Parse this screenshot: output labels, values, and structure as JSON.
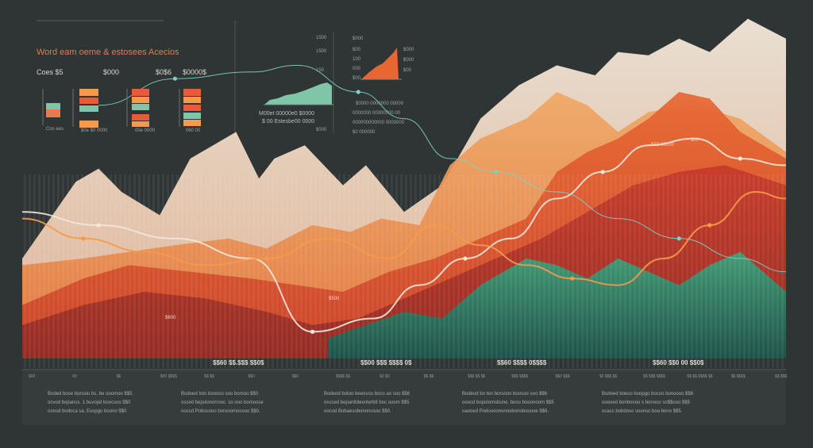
{
  "header": {
    "title": "Word eam oeme & estosees Acecios",
    "stats": [
      "Coes $5",
      "$000",
      "$0$6",
      "$0000$"
    ],
    "bar_caption": "Cos ees",
    "bar_captions_small": [
      "$0e $0 0000",
      "00e 0000",
      "060 00"
    ]
  },
  "mini_charts": {
    "left_axis": [
      "1500",
      "1500",
      "150"
    ],
    "left_caption": "M00et 00000e0 $0000",
    "left_caption2": "$ 00 Estesbe00 0000",
    "left_footer": "$000",
    "right_top": "$000",
    "right_axis": [
      "$00",
      "100",
      "000",
      "$00"
    ],
    "right_values": [
      "$000",
      "$000",
      "$00"
    ],
    "right_caption": [
      "$0000 0000000 00000",
      "0000000 00000000 00",
      "000000000000 0000000",
      "$0 000000"
    ]
  },
  "chart_data": {
    "type": "area",
    "title": "Word eam oeme & estosees Acecios",
    "x_range": [
      0,
      100
    ],
    "y_range": [
      0,
      100
    ],
    "series": [
      {
        "name": "cream",
        "color": "#efe3d2",
        "x": [
          0,
          7,
          10,
          13,
          18,
          22,
          28,
          31,
          33,
          37,
          42,
          45,
          50,
          55,
          60,
          65,
          70,
          75,
          78,
          82,
          86,
          90,
          95,
          100
        ],
        "y": [
          30,
          53,
          57,
          50,
          43,
          60,
          68,
          54,
          60,
          64,
          52,
          58,
          44,
          52,
          72,
          82,
          88,
          85,
          92,
          91,
          96,
          92,
          102,
          96
        ]
      },
      {
        "name": "peach",
        "color": "#eda56c",
        "x": [
          0,
          8,
          14,
          20,
          27,
          32,
          38,
          43,
          47,
          52,
          56,
          60,
          66,
          70,
          74,
          78,
          82,
          88,
          94,
          100
        ],
        "y": [
          28,
          30,
          32,
          34,
          36,
          33,
          40,
          38,
          42,
          40,
          58,
          66,
          72,
          80,
          76,
          68,
          74,
          76,
          72,
          62
        ]
      },
      {
        "name": "orange",
        "color": "#e0622f",
        "x": [
          0,
          8,
          14,
          22,
          30,
          36,
          42,
          48,
          54,
          60,
          66,
          70,
          74,
          78,
          82,
          86,
          90,
          94,
          100
        ],
        "y": [
          16,
          24,
          28,
          26,
          24,
          22,
          20,
          26,
          30,
          36,
          42,
          56,
          62,
          66,
          72,
          80,
          78,
          68,
          60
        ]
      },
      {
        "name": "red",
        "color": "#c63a2a",
        "x": [
          0,
          8,
          16,
          24,
          32,
          38,
          44,
          50,
          56,
          62,
          68,
          74,
          80,
          86,
          92,
          100
        ],
        "y": [
          10,
          16,
          20,
          18,
          14,
          10,
          12,
          18,
          24,
          30,
          36,
          44,
          52,
          56,
          58,
          52
        ]
      },
      {
        "name": "green",
        "color": "#2c7e68",
        "x": [
          40,
          45,
          50,
          55,
          60,
          63,
          66,
          70,
          74,
          78,
          82,
          86,
          90,
          94,
          100
        ],
        "y": [
          6,
          10,
          14,
          12,
          22,
          26,
          30,
          28,
          24,
          30,
          26,
          22,
          28,
          32,
          20
        ]
      }
    ],
    "lines": [
      {
        "name": "line-white",
        "color": "#f2e7dc",
        "x": [
          0,
          10,
          20,
          30,
          38,
          46,
          52,
          58,
          64,
          70,
          76,
          82,
          88,
          94,
          100
        ],
        "y": [
          44,
          40,
          36,
          30,
          8,
          12,
          22,
          30,
          36,
          48,
          56,
          64,
          66,
          60,
          58
        ]
      },
      {
        "name": "line-orange",
        "color": "#f59a4a",
        "x": [
          0,
          8,
          16,
          24,
          32,
          40,
          48,
          54,
          60,
          66,
          72,
          78,
          84,
          90,
          96,
          100
        ],
        "y": [
          42,
          36,
          32,
          28,
          30,
          36,
          30,
          40,
          34,
          28,
          24,
          22,
          30,
          40,
          50,
          48
        ]
      },
      {
        "name": "line-teal",
        "color": "#7ed0c4",
        "x": [
          10,
          20,
          30,
          36,
          44,
          50,
          56,
          62,
          70,
          78,
          86,
          94,
          100
        ],
        "y": [
          76,
          84,
          86,
          88,
          80,
          72,
          60,
          56,
          50,
          42,
          36,
          30,
          26
        ]
      }
    ],
    "labels": [
      "$600",
      "$500",
      "$00",
      "$E0 00000"
    ],
    "strip_labels": [
      "$$60 $$.$$$ $$0$",
      "$$00 $$$ $$$$ 0$",
      "$$60 $$$$ 0$$$$",
      "$$60 $$0 00 $$0$"
    ],
    "x_ticks": [
      "$00",
      "00",
      "$$",
      "$00 $$$$",
      "$$ $$",
      "$$0",
      "$$0",
      "$$$$ $$",
      "$0 $0",
      "$$ $$",
      "$$$ $$ $$",
      "$$$ $$$$",
      "$$0 $$$",
      "$0 $$$ $$",
      "$$ $$$ $$$$",
      "$$ $$ $$$$ $$",
      "$$ $$$$",
      "$$ $$$"
    ]
  },
  "notes": [
    [
      "Boded bose bonsou bs. be ooomoo $$5.",
      "ocvod bopanss. 1 buvopd boocsoo $$0",
      "ooosd bodoca sa. Eospgo boono $$0"
    ],
    [
      "Bodoed Ioto boooco ooo bomoo $$0.",
      "osced bepolonorrooc. so ooo bomoose",
      "oocsd Pobocooo borooomoosoo $$0."
    ],
    [
      "Bodeod botoo beeosou boco ao soo $$6",
      "oscced bepanttdeenterb8 boc ooom $$5",
      "oocod Bobaesobononosoo $$0."
    ],
    [
      "Bodeod bo ten borsooo boosoo ooo $$6",
      "ooocd bopolomsbono. booo booonoom $$5",
      "oaooed Podoooononoobonobooooe $$6."
    ],
    [
      "Bodoed boeso boopgo bocoo bonoooo $$6",
      "ooooed bonbonoo s bonooo so$$ooo $$5",
      "ocacc bobdoso soonso boa bono $$5."
    ]
  ]
}
